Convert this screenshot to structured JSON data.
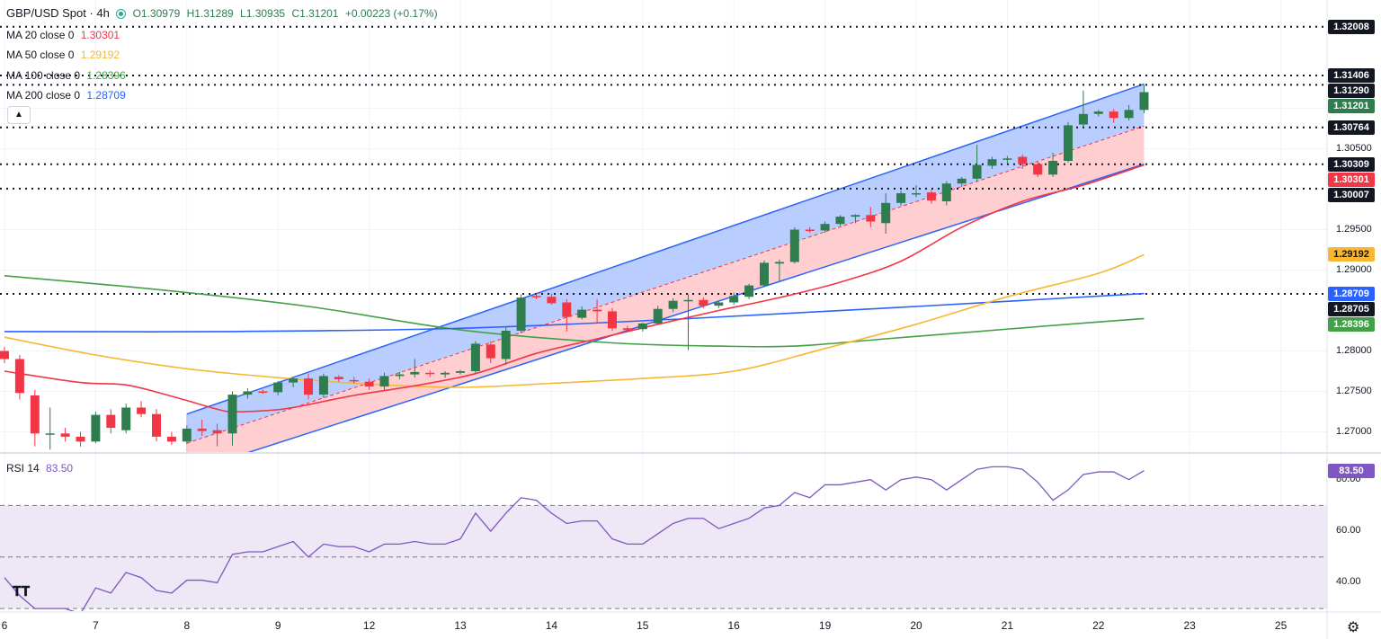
{
  "legend": {
    "symbol": "GBP/USD Spot · 4h",
    "open": "O1.30979",
    "high": "H1.31289",
    "low": "L1.30935",
    "close": "C1.31201",
    "change": "+0.00223 (+0.17%)",
    "ma20_label": "MA 20 close 0",
    "ma20_value": "1.30301",
    "ma50_label": "MA 50 close 0",
    "ma50_value": "1.29192",
    "ma100_label": "MA 100 close 0",
    "ma100_value": "1.28396",
    "ma200_label": "MA 200 close 0",
    "ma200_value": "1.28709",
    "rsi_label": "RSI 14",
    "rsi_value": "83.50",
    "collapse_icon": "chevron-up-icon"
  },
  "colors": {
    "up": "#26a69a",
    "up_body": "#2e7d4f",
    "down": "#f23645",
    "ma20": "#f23645",
    "ma50": "#f7b733",
    "ma100": "#43a047",
    "ma200": "#2962ff",
    "channel_upper_fill": "#aec4ff",
    "channel_lower_fill": "#ffc6c9",
    "rsi": "#7e57c2",
    "rsi_band": "#ede7f6"
  },
  "price_axis": {
    "ticks": [
      "1.31000",
      "1.30500",
      "1.29500",
      "1.29000",
      "1.28000",
      "1.27500",
      "1.27000"
    ],
    "tick_values": [
      1.31,
      1.305,
      1.295,
      1.29,
      1.28,
      1.275,
      1.27
    ],
    "boxes": [
      {
        "text": "1.32008",
        "value": 1.32008,
        "bg": "#131722",
        "fg": "#ffffff"
      },
      {
        "text": "1.31406",
        "value": 1.31406,
        "bg": "#131722",
        "fg": "#ffffff"
      },
      {
        "text": "1.31290",
        "value": 1.3129,
        "bg": "#131722",
        "fg": "#ffffff"
      },
      {
        "text": "1.31201",
        "value": 1.31201,
        "bg": "#2e7d4f",
        "fg": "#ffffff"
      },
      {
        "text": "1.30764",
        "value": 1.30764,
        "bg": "#131722",
        "fg": "#ffffff"
      },
      {
        "text": "1.30309",
        "value": 1.30309,
        "bg": "#131722",
        "fg": "#ffffff"
      },
      {
        "text": "1.30301",
        "value": 1.30301,
        "bg": "#f23645",
        "fg": "#ffffff"
      },
      {
        "text": "1.30007",
        "value": 1.30007,
        "bg": "#131722",
        "fg": "#ffffff"
      },
      {
        "text": "1.29192",
        "value": 1.29192,
        "bg": "#f7b733",
        "fg": "#131722"
      },
      {
        "text": "1.28709",
        "value": 1.28709,
        "bg": "#2962ff",
        "fg": "#ffffff"
      },
      {
        "text": "1.28705",
        "value": 1.28705,
        "bg": "#131722",
        "fg": "#ffffff"
      },
      {
        "text": "1.28396",
        "value": 1.28396,
        "bg": "#43a047",
        "fg": "#ffffff"
      }
    ]
  },
  "rsi_axis": {
    "ticks": [
      "80.00",
      "60.00",
      "40.00"
    ],
    "tick_values": [
      80,
      60,
      40
    ],
    "current_box": "83.50",
    "current_value": 83.5
  },
  "x_axis": {
    "labels": [
      "6",
      "7",
      "8",
      "9",
      "12",
      "13",
      "14",
      "15",
      "16",
      "19",
      "20",
      "21",
      "22",
      "23",
      "25"
    ],
    "label_bar_index": [
      0,
      6,
      12,
      18,
      24,
      30,
      36,
      42,
      48,
      54,
      60,
      66,
      72,
      78,
      84
    ]
  },
  "chart_data": {
    "type": "candlestick",
    "symbol": "GBP/USD Spot",
    "interval": "4h",
    "ylim": [
      1.2675,
      1.3225
    ],
    "rsi_ylim": [
      29,
      90
    ],
    "bars": [
      {
        "o": 1.28,
        "h": 1.2805,
        "l": 1.2785,
        "c": 1.279
      },
      {
        "o": 1.279,
        "h": 1.2795,
        "l": 1.274,
        "c": 1.2748
      },
      {
        "o": 1.2745,
        "h": 1.2752,
        "l": 1.2682,
        "c": 1.2698
      },
      {
        "o": 1.2697,
        "h": 1.273,
        "l": 1.2678,
        "c": 1.2698
      },
      {
        "o": 1.2698,
        "h": 1.2705,
        "l": 1.2688,
        "c": 1.2694
      },
      {
        "o": 1.2694,
        "h": 1.27,
        "l": 1.2682,
        "c": 1.2688
      },
      {
        "o": 1.2688,
        "h": 1.2725,
        "l": 1.2686,
        "c": 1.2721
      },
      {
        "o": 1.2721,
        "h": 1.2728,
        "l": 1.2698,
        "c": 1.2705
      },
      {
        "o": 1.2702,
        "h": 1.2735,
        "l": 1.2698,
        "c": 1.273
      },
      {
        "o": 1.273,
        "h": 1.2738,
        "l": 1.2718,
        "c": 1.2722
      },
      {
        "o": 1.2722,
        "h": 1.2728,
        "l": 1.2688,
        "c": 1.2694
      },
      {
        "o": 1.2694,
        "h": 1.27,
        "l": 1.2684,
        "c": 1.2688
      },
      {
        "o": 1.2688,
        "h": 1.2708,
        "l": 1.2685,
        "c": 1.2704
      },
      {
        "o": 1.2704,
        "h": 1.2715,
        "l": 1.2695,
        "c": 1.2701
      },
      {
        "o": 1.2702,
        "h": 1.271,
        "l": 1.2682,
        "c": 1.2698
      },
      {
        "o": 1.2698,
        "h": 1.275,
        "l": 1.2683,
        "c": 1.2746
      },
      {
        "o": 1.2746,
        "h": 1.2754,
        "l": 1.2741,
        "c": 1.275
      },
      {
        "o": 1.275,
        "h": 1.2752,
        "l": 1.2747,
        "c": 1.2749
      },
      {
        "o": 1.2749,
        "h": 1.2763,
        "l": 1.2745,
        "c": 1.2761
      },
      {
        "o": 1.2761,
        "h": 1.2768,
        "l": 1.2755,
        "c": 1.2766
      },
      {
        "o": 1.2766,
        "h": 1.2772,
        "l": 1.274,
        "c": 1.2746
      },
      {
        "o": 1.2746,
        "h": 1.2772,
        "l": 1.2742,
        "c": 1.2769
      },
      {
        "o": 1.2768,
        "h": 1.277,
        "l": 1.2762,
        "c": 1.2765
      },
      {
        "o": 1.2764,
        "h": 1.2768,
        "l": 1.276,
        "c": 1.2763
      },
      {
        "o": 1.2762,
        "h": 1.2766,
        "l": 1.2752,
        "c": 1.2756
      },
      {
        "o": 1.2756,
        "h": 1.2773,
        "l": 1.2752,
        "c": 1.2769
      },
      {
        "o": 1.2769,
        "h": 1.2774,
        "l": 1.2765,
        "c": 1.2771
      },
      {
        "o": 1.2771,
        "h": 1.279,
        "l": 1.2767,
        "c": 1.2774
      },
      {
        "o": 1.2773,
        "h": 1.2776,
        "l": 1.2768,
        "c": 1.2772
      },
      {
        "o": 1.2771,
        "h": 1.2775,
        "l": 1.2767,
        "c": 1.2773
      },
      {
        "o": 1.2773,
        "h": 1.2777,
        "l": 1.2771,
        "c": 1.2775
      },
      {
        "o": 1.2775,
        "h": 1.2812,
        "l": 1.2772,
        "c": 1.2809
      },
      {
        "o": 1.2808,
        "h": 1.2812,
        "l": 1.2785,
        "c": 1.2791
      },
      {
        "o": 1.279,
        "h": 1.2829,
        "l": 1.2783,
        "c": 1.2825
      },
      {
        "o": 1.2825,
        "h": 1.287,
        "l": 1.2822,
        "c": 1.2866
      },
      {
        "o": 1.2868,
        "h": 1.2871,
        "l": 1.2864,
        "c": 1.2867
      },
      {
        "o": 1.2867,
        "h": 1.2871,
        "l": 1.2857,
        "c": 1.2859
      },
      {
        "o": 1.286,
        "h": 1.2864,
        "l": 1.2824,
        "c": 1.2842
      },
      {
        "o": 1.2841,
        "h": 1.2855,
        "l": 1.2839,
        "c": 1.2851
      },
      {
        "o": 1.2851,
        "h": 1.2864,
        "l": 1.2834,
        "c": 1.2849
      },
      {
        "o": 1.2849,
        "h": 1.2853,
        "l": 1.2825,
        "c": 1.2828
      },
      {
        "o": 1.2828,
        "h": 1.2831,
        "l": 1.2824,
        "c": 1.2826
      },
      {
        "o": 1.2827,
        "h": 1.2835,
        "l": 1.2824,
        "c": 1.2834
      },
      {
        "o": 1.2834,
        "h": 1.2856,
        "l": 1.2832,
        "c": 1.2852
      },
      {
        "o": 1.2852,
        "h": 1.2865,
        "l": 1.2848,
        "c": 1.2862
      },
      {
        "o": 1.2862,
        "h": 1.287,
        "l": 1.2801,
        "c": 1.2863
      },
      {
        "o": 1.2863,
        "h": 1.2866,
        "l": 1.2853,
        "c": 1.2856
      },
      {
        "o": 1.2856,
        "h": 1.2862,
        "l": 1.2853,
        "c": 1.286
      },
      {
        "o": 1.286,
        "h": 1.2872,
        "l": 1.2857,
        "c": 1.2868
      },
      {
        "o": 1.2867,
        "h": 1.2883,
        "l": 1.2864,
        "c": 1.2881
      },
      {
        "o": 1.2881,
        "h": 1.2912,
        "l": 1.2879,
        "c": 1.2909
      },
      {
        "o": 1.2908,
        "h": 1.2913,
        "l": 1.2885,
        "c": 1.291
      },
      {
        "o": 1.291,
        "h": 1.2953,
        "l": 1.2908,
        "c": 1.295
      },
      {
        "o": 1.295,
        "h": 1.2953,
        "l": 1.2946,
        "c": 1.2949
      },
      {
        "o": 1.2949,
        "h": 1.296,
        "l": 1.2946,
        "c": 1.2957
      },
      {
        "o": 1.2957,
        "h": 1.2968,
        "l": 1.2955,
        "c": 1.2966
      },
      {
        "o": 1.2966,
        "h": 1.2969,
        "l": 1.2958,
        "c": 1.2968
      },
      {
        "o": 1.2968,
        "h": 1.2978,
        "l": 1.2953,
        "c": 1.296
      },
      {
        "o": 1.2958,
        "h": 1.2995,
        "l": 1.2945,
        "c": 1.2983
      },
      {
        "o": 1.2983,
        "h": 1.2998,
        "l": 1.298,
        "c": 1.2995
      },
      {
        "o": 1.2995,
        "h": 1.3005,
        "l": 1.299,
        "c": 1.2995
      },
      {
        "o": 1.2996,
        "h": 1.2999,
        "l": 1.2982,
        "c": 1.2986
      },
      {
        "o": 1.2985,
        "h": 1.301,
        "l": 1.298,
        "c": 1.3007
      },
      {
        "o": 1.3007,
        "h": 1.3015,
        "l": 1.3003,
        "c": 1.3013
      },
      {
        "o": 1.3013,
        "h": 1.3055,
        "l": 1.301,
        "c": 1.303
      },
      {
        "o": 1.3029,
        "h": 1.304,
        "l": 1.3025,
        "c": 1.3037
      },
      {
        "o": 1.3037,
        "h": 1.3041,
        "l": 1.3032,
        "c": 1.3038
      },
      {
        "o": 1.304,
        "h": 1.3043,
        "l": 1.3025,
        "c": 1.3031
      },
      {
        "o": 1.3031,
        "h": 1.3034,
        "l": 1.3015,
        "c": 1.3018
      },
      {
        "o": 1.3018,
        "h": 1.3045,
        "l": 1.3015,
        "c": 1.3035
      },
      {
        "o": 1.3035,
        "h": 1.3083,
        "l": 1.3033,
        "c": 1.3079
      },
      {
        "o": 1.308,
        "h": 1.3122,
        "l": 1.3077,
        "c": 1.3093
      },
      {
        "o": 1.3093,
        "h": 1.3098,
        "l": 1.309,
        "c": 1.3096
      },
      {
        "o": 1.3096,
        "h": 1.3099,
        "l": 1.3082,
        "c": 1.3088
      },
      {
        "o": 1.3088,
        "h": 1.3104,
        "l": 1.3085,
        "c": 1.3098
      },
      {
        "o": 1.3098,
        "h": 1.3129,
        "l": 1.3094,
        "c": 1.312
      }
    ],
    "ma20": [
      [
        0,
        1.2775
      ],
      [
        5,
        1.2761
      ],
      [
        8,
        1.2758
      ],
      [
        11,
        1.2744
      ],
      [
        14,
        1.2728
      ],
      [
        15,
        1.2725
      ],
      [
        17,
        1.2726
      ],
      [
        19,
        1.273
      ],
      [
        23,
        1.2745
      ],
      [
        27,
        1.2757
      ],
      [
        31,
        1.2772
      ],
      [
        35,
        1.2797
      ],
      [
        39,
        1.2815
      ],
      [
        43,
        1.2833
      ],
      [
        47,
        1.285
      ],
      [
        51,
        1.2866
      ],
      [
        55,
        1.2885
      ],
      [
        59,
        1.2911
      ],
      [
        63,
        1.2953
      ],
      [
        67,
        1.2985
      ],
      [
        71,
        1.3005
      ],
      [
        75,
        1.303
      ]
    ],
    "ma50": [
      [
        0,
        1.2817
      ],
      [
        6,
        1.2795
      ],
      [
        12,
        1.2778
      ],
      [
        18,
        1.2767
      ],
      [
        24,
        1.2759
      ],
      [
        30,
        1.2755
      ],
      [
        36,
        1.276
      ],
      [
        42,
        1.2766
      ],
      [
        48,
        1.2775
      ],
      [
        54,
        1.2803
      ],
      [
        60,
        1.2833
      ],
      [
        66,
        1.2867
      ],
      [
        72,
        1.2896
      ],
      [
        75,
        1.2919
      ]
    ],
    "ma100": [
      [
        0,
        1.2893
      ],
      [
        10,
        1.2876
      ],
      [
        20,
        1.2855
      ],
      [
        30,
        1.2826
      ],
      [
        40,
        1.281
      ],
      [
        47,
        1.2806
      ],
      [
        52,
        1.2806
      ],
      [
        58,
        1.2815
      ],
      [
        64,
        1.2824
      ],
      [
        70,
        1.2833
      ],
      [
        75,
        1.284
      ]
    ],
    "ma200": [
      [
        0,
        1.2824
      ],
      [
        15,
        1.2824
      ],
      [
        30,
        1.2828
      ],
      [
        45,
        1.284
      ],
      [
        60,
        1.2855
      ],
      [
        75,
        1.2871
      ]
    ],
    "channel": {
      "start_bar": 12,
      "end_bar": 75,
      "upper": [
        1.2722,
        1.313
      ],
      "mid": [
        1.2686,
        1.3078
      ],
      "lower": [
        1.265,
        1.3031
      ]
    },
    "dotted_levels": [
      1.32008,
      1.31406,
      1.3129,
      1.30764,
      1.30309,
      1.30007,
      1.28705
    ],
    "rsi": [
      [
        0,
        42
      ],
      [
        1,
        35
      ],
      [
        2,
        30
      ],
      [
        3,
        30
      ],
      [
        4,
        30
      ],
      [
        5,
        28
      ],
      [
        6,
        38
      ],
      [
        7,
        36
      ],
      [
        8,
        44
      ],
      [
        9,
        42
      ],
      [
        10,
        37
      ],
      [
        11,
        36
      ],
      [
        12,
        41
      ],
      [
        13,
        41
      ],
      [
        14,
        40
      ],
      [
        15,
        51
      ],
      [
        16,
        52
      ],
      [
        17,
        52
      ],
      [
        18,
        54
      ],
      [
        19,
        56
      ],
      [
        20,
        50
      ],
      [
        21,
        55
      ],
      [
        22,
        54
      ],
      [
        23,
        54
      ],
      [
        24,
        52
      ],
      [
        25,
        55
      ],
      [
        26,
        55
      ],
      [
        27,
        56
      ],
      [
        28,
        55
      ],
      [
        29,
        55
      ],
      [
        30,
        57
      ],
      [
        31,
        67
      ],
      [
        32,
        60
      ],
      [
        33,
        67
      ],
      [
        34,
        73
      ],
      [
        35,
        72
      ],
      [
        36,
        67
      ],
      [
        37,
        63
      ],
      [
        38,
        64
      ],
      [
        39,
        64
      ],
      [
        40,
        57
      ],
      [
        41,
        55
      ],
      [
        42,
        55
      ],
      [
        43,
        59
      ],
      [
        44,
        63
      ],
      [
        45,
        65
      ],
      [
        46,
        65
      ],
      [
        47,
        61
      ],
      [
        48,
        63
      ],
      [
        49,
        65
      ],
      [
        50,
        69
      ],
      [
        51,
        70
      ],
      [
        52,
        75
      ],
      [
        53,
        73
      ],
      [
        54,
        78
      ],
      [
        55,
        78
      ],
      [
        56,
        79
      ],
      [
        57,
        80
      ],
      [
        58,
        76
      ],
      [
        59,
        80
      ],
      [
        60,
        81
      ],
      [
        61,
        80
      ],
      [
        62,
        76
      ],
      [
        63,
        80
      ],
      [
        64,
        84
      ],
      [
        65,
        85
      ],
      [
        66,
        85
      ],
      [
        67,
        84
      ],
      [
        68,
        79
      ],
      [
        69,
        72
      ],
      [
        70,
        76
      ],
      [
        71,
        82
      ],
      [
        72,
        83
      ],
      [
        73,
        83
      ],
      [
        74,
        80
      ],
      [
        75,
        83.5
      ]
    ],
    "rsi_levels": [
      70,
      50,
      30
    ]
  }
}
